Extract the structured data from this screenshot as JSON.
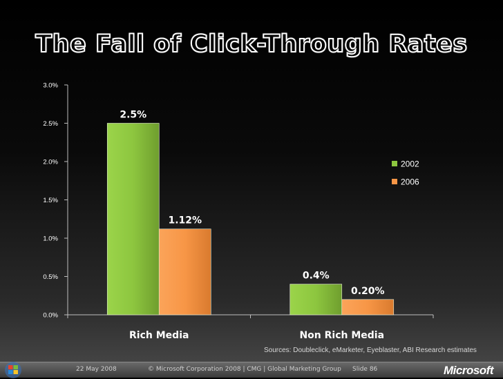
{
  "slide": {
    "title": "The Fall of Click-Through Rates",
    "sources": "Sources: Doubleclick, eMarketer, Eyeblaster,  ABI Research estimates"
  },
  "footer": {
    "date": "22 May 2008",
    "copyright": "© Microsoft Corporation 2008 | CMG | Global Marketing Group",
    "slide_number": "Slide 86",
    "brand": "Microsoft"
  },
  "chart_data": {
    "type": "bar",
    "categories": [
      "Rich Media",
      "Non Rich Media"
    ],
    "series": [
      {
        "name": "2002",
        "values": [
          2.5,
          0.4
        ],
        "labels": [
          "2.5%",
          "0.4%"
        ],
        "color": "#8dc63f"
      },
      {
        "name": "2006",
        "values": [
          1.12,
          0.2
        ],
        "labels": [
          "1.12%",
          "0.20%"
        ],
        "color": "#f79646"
      }
    ],
    "y_ticks": [
      "0.0%",
      "0.5%",
      "1.0%",
      "1.5%",
      "2.0%",
      "2.5%",
      "3.0%"
    ],
    "ylim": [
      0,
      3.0
    ],
    "legend_position": "right",
    "grid": false,
    "colors": {
      "axis": "#bfbfbf",
      "text": "#ffffff"
    }
  }
}
